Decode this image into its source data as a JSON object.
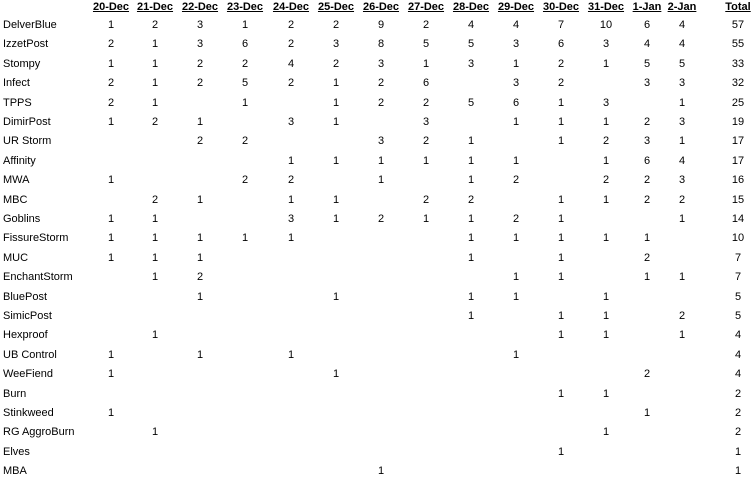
{
  "table": {
    "columns": [
      "20-Dec",
      "21-Dec",
      "22-Dec",
      "23-Dec",
      "24-Dec",
      "25-Dec",
      "26-Dec",
      "27-Dec",
      "28-Dec",
      "29-Dec",
      "30-Dec",
      "31-Dec",
      "1-Jan",
      "2-Jan"
    ],
    "total_label": "Total",
    "rows": [
      {
        "name": "DelverBlue",
        "values": [
          "1",
          "2",
          "3",
          "1",
          "2",
          "2",
          "9",
          "2",
          "4",
          "4",
          "7",
          "10",
          "6",
          "4"
        ],
        "total": "57"
      },
      {
        "name": "IzzetPost",
        "values": [
          "2",
          "1",
          "3",
          "6",
          "2",
          "3",
          "8",
          "5",
          "5",
          "3",
          "6",
          "3",
          "4",
          "4"
        ],
        "total": "55"
      },
      {
        "name": "Stompy",
        "values": [
          "1",
          "1",
          "2",
          "2",
          "4",
          "2",
          "3",
          "1",
          "3",
          "1",
          "2",
          "1",
          "5",
          "5"
        ],
        "total": "33"
      },
      {
        "name": "Infect",
        "values": [
          "2",
          "1",
          "2",
          "5",
          "2",
          "1",
          "2",
          "6",
          "",
          "3",
          "2",
          "",
          "3",
          "3"
        ],
        "total": "32"
      },
      {
        "name": "TPPS",
        "values": [
          "2",
          "1",
          "",
          "1",
          "",
          "1",
          "2",
          "2",
          "5",
          "6",
          "1",
          "3",
          "",
          "1"
        ],
        "total": "25"
      },
      {
        "name": "DimirPost",
        "values": [
          "1",
          "2",
          "1",
          "",
          "3",
          "1",
          "",
          "3",
          "",
          "1",
          "1",
          "1",
          "2",
          "3"
        ],
        "total": "19"
      },
      {
        "name": "UR Storm",
        "values": [
          "",
          "",
          "2",
          "2",
          "",
          "",
          "3",
          "2",
          "1",
          "",
          "1",
          "2",
          "3",
          "1"
        ],
        "total": "17"
      },
      {
        "name": "Affinity",
        "values": [
          "",
          "",
          "",
          "",
          "1",
          "1",
          "1",
          "1",
          "1",
          "1",
          "",
          "1",
          "6",
          "4"
        ],
        "total": "17"
      },
      {
        "name": "MWA",
        "values": [
          "1",
          "",
          "",
          "2",
          "2",
          "",
          "1",
          "",
          "1",
          "2",
          "",
          "2",
          "2",
          "3"
        ],
        "total": "16"
      },
      {
        "name": "MBC",
        "values": [
          "",
          "2",
          "1",
          "",
          "1",
          "1",
          "",
          "2",
          "2",
          "",
          "1",
          "1",
          "2",
          "2"
        ],
        "total": "15"
      },
      {
        "name": "Goblins",
        "values": [
          "1",
          "1",
          "",
          "",
          "3",
          "1",
          "2",
          "1",
          "1",
          "2",
          "1",
          "",
          "",
          "1"
        ],
        "total": "14"
      },
      {
        "name": "FissureStorm",
        "values": [
          "1",
          "1",
          "1",
          "1",
          "1",
          "",
          "",
          "",
          "1",
          "1",
          "1",
          "1",
          "1",
          ""
        ],
        "total": "10"
      },
      {
        "name": "MUC",
        "values": [
          "1",
          "1",
          "1",
          "",
          "",
          "",
          "",
          "",
          "1",
          "",
          "1",
          "",
          "2",
          ""
        ],
        "total": "7"
      },
      {
        "name": "EnchantStorm",
        "values": [
          "",
          "1",
          "2",
          "",
          "",
          "",
          "",
          "",
          "",
          "1",
          "1",
          "",
          "1",
          "1"
        ],
        "total": "7"
      },
      {
        "name": "BluePost",
        "values": [
          "",
          "",
          "1",
          "",
          "",
          "1",
          "",
          "",
          "1",
          "1",
          "",
          "1",
          "",
          ""
        ],
        "total": "5"
      },
      {
        "name": "SimicPost",
        "values": [
          "",
          "",
          "",
          "",
          "",
          "",
          "",
          "",
          "1",
          "",
          "1",
          "1",
          "",
          "2"
        ],
        "total": "5"
      },
      {
        "name": "Hexproof",
        "values": [
          "",
          "1",
          "",
          "",
          "",
          "",
          "",
          "",
          "",
          "",
          "1",
          "1",
          "",
          "1"
        ],
        "total": "4"
      },
      {
        "name": "UB Control",
        "values": [
          "1",
          "",
          "1",
          "",
          "1",
          "",
          "",
          "",
          "",
          "1",
          "",
          "",
          "",
          ""
        ],
        "total": "4"
      },
      {
        "name": "WeeFiend",
        "values": [
          "1",
          "",
          "",
          "",
          "",
          "1",
          "",
          "",
          "",
          "",
          "",
          "",
          "2",
          ""
        ],
        "total": "4"
      },
      {
        "name": "Burn",
        "values": [
          "",
          "",
          "",
          "",
          "",
          "",
          "",
          "",
          "",
          "",
          "1",
          "1",
          "",
          ""
        ],
        "total": "2"
      },
      {
        "name": "Stinkweed",
        "values": [
          "1",
          "",
          "",
          "",
          "",
          "",
          "",
          "",
          "",
          "",
          "",
          "",
          "1",
          ""
        ],
        "total": "2"
      },
      {
        "name": "RG AggroBurn",
        "values": [
          "",
          "1",
          "",
          "",
          "",
          "",
          "",
          "",
          "",
          "",
          "",
          "1",
          "",
          ""
        ],
        "total": "2"
      },
      {
        "name": "Elves",
        "values": [
          "",
          "",
          "",
          "",
          "",
          "",
          "",
          "",
          "",
          "",
          "1",
          "",
          "",
          ""
        ],
        "total": "1"
      },
      {
        "name": "MBA",
        "values": [
          "",
          "",
          "",
          "",
          "",
          "",
          "1",
          "",
          "",
          "",
          "",
          "",
          "",
          ""
        ],
        "total": "1"
      }
    ]
  }
}
